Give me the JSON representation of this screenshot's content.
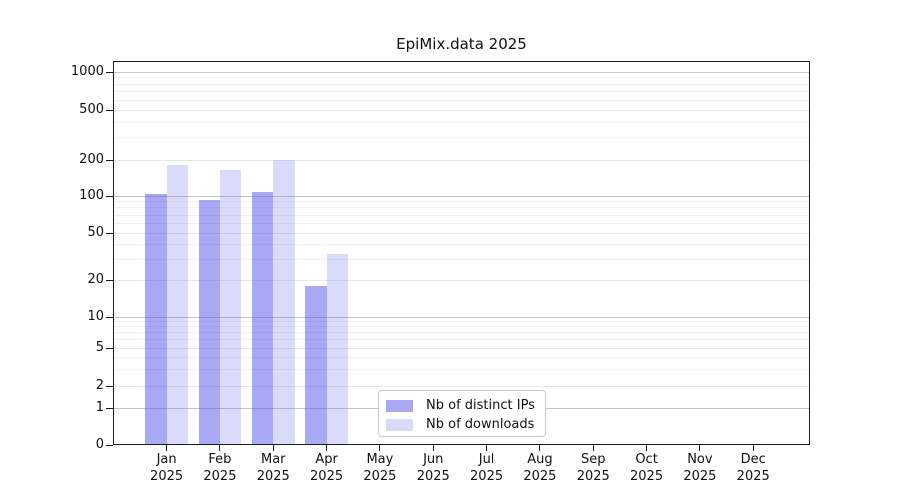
{
  "title": "EpiMix.data 2025",
  "chart_data": {
    "type": "bar",
    "title": "EpiMix.data 2025",
    "categories": [
      "Jan 2025",
      "Feb 2025",
      "Mar 2025",
      "Apr 2025",
      "May 2025",
      "Jun 2025",
      "Jul 2025",
      "Aug 2025",
      "Sep 2025",
      "Oct 2025",
      "Nov 2025",
      "Dec 2025"
    ],
    "series": [
      {
        "name": "Nb of distinct IPs",
        "color": "rgba(88,88,236,0.52)",
        "values": [
          103,
          93,
          107,
          18,
          0,
          0,
          0,
          0,
          0,
          0,
          0,
          0
        ]
      },
      {
        "name": "Nb of downloads",
        "color": "rgba(88,88,236,0.22)",
        "values": [
          180,
          165,
          200,
          33,
          0,
          0,
          0,
          0,
          0,
          0,
          0,
          0
        ]
      }
    ],
    "xlabel": "",
    "ylabel": "",
    "yscale": "symlog",
    "ylim": [
      0,
      1240
    ],
    "y_tick_values": [
      0,
      1,
      2,
      5,
      10,
      20,
      50,
      100,
      200,
      500,
      1000
    ],
    "y_decade_gridlines": [
      1,
      10,
      100,
      1000
    ],
    "y_minor_gridlines": [
      3,
      4,
      6,
      7,
      8,
      9,
      30,
      40,
      60,
      70,
      80,
      90,
      300,
      400,
      600,
      700,
      800,
      900
    ],
    "grid": "both",
    "legend_position": "lower center"
  },
  "legend": {
    "items": [
      {
        "label": "Nb of distinct IPs"
      },
      {
        "label": "Nb of downloads"
      }
    ]
  },
  "colors": {
    "bar_ips": "rgba(88,88,236,0.52)",
    "bar_downloads": "rgba(88,88,236,0.22)",
    "grid_major": "#c4c4c4",
    "grid_labeled_minor": "#e6e6e6",
    "grid_minor": "#f1f1f1",
    "spine": "#1a1a1a"
  }
}
